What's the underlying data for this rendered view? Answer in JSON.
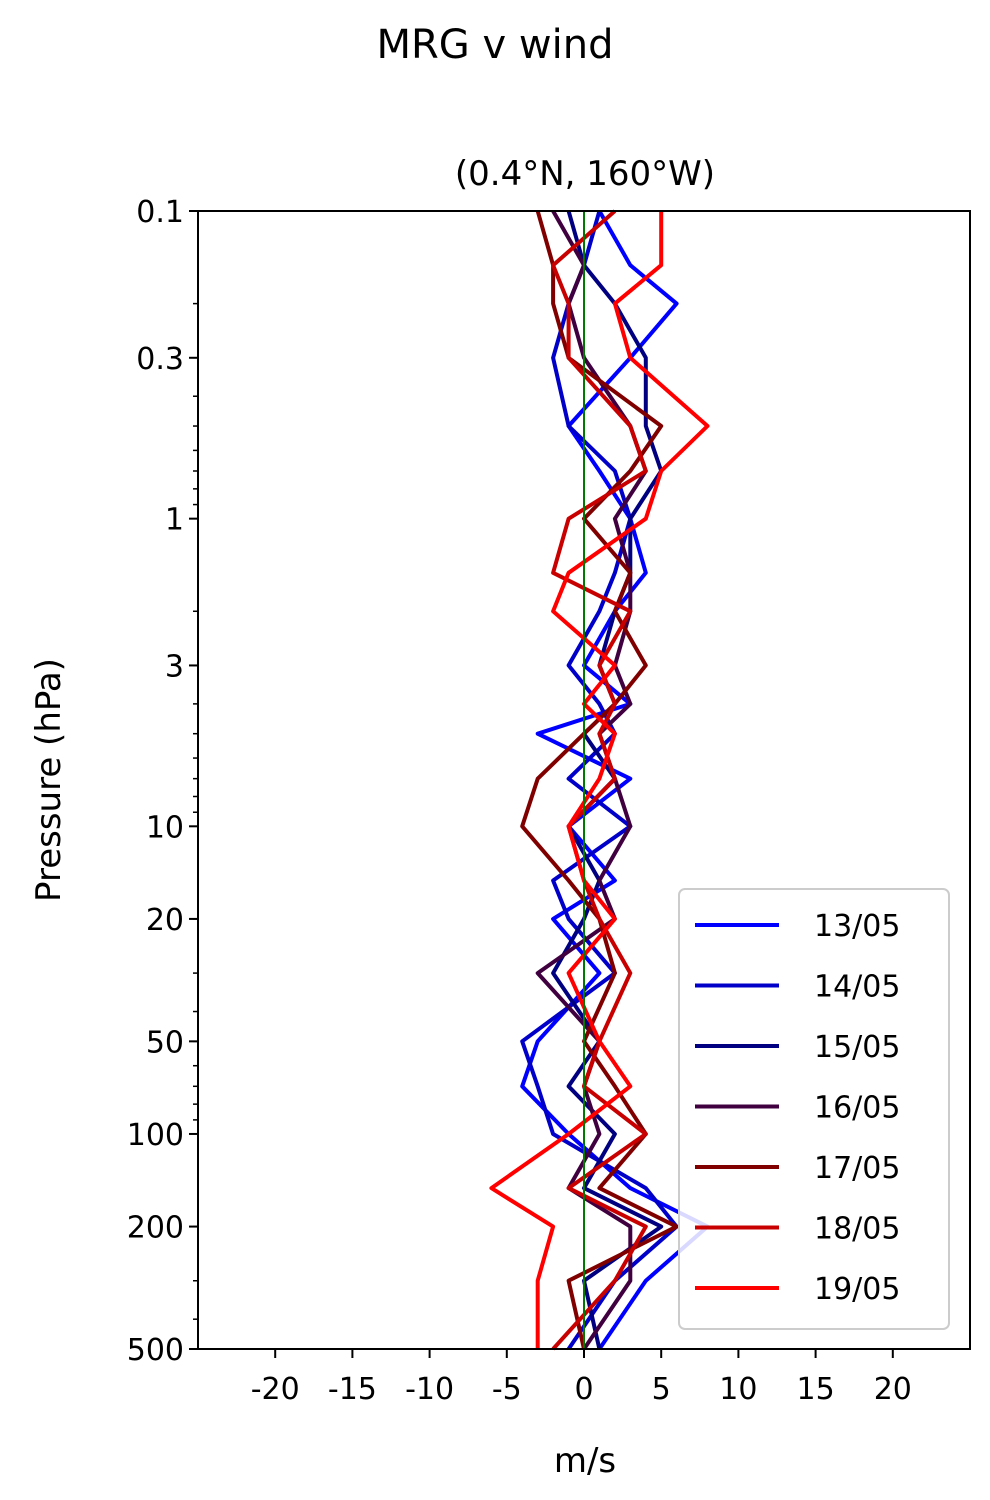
{
  "figure": {
    "title": "MRG v wind"
  },
  "colors": {
    "zero_line": "#007a00",
    "axes": "#000000"
  },
  "chart_data": {
    "type": "line",
    "title": "(0.4°N, 160°W)",
    "xlabel": "m/s",
    "ylabel": "Pressure (hPa)",
    "xlim": [
      -25,
      25
    ],
    "ylim": [
      500,
      0.1
    ],
    "yscale": "log",
    "x_ticks": [
      -20,
      -15,
      -10,
      -5,
      0,
      5,
      10,
      15,
      20
    ],
    "x_tick_labels": [
      "-20",
      "-15",
      "-10",
      "-5",
      "0",
      "5",
      "10",
      "15",
      "20"
    ],
    "y_ticks": [
      0.1,
      0.3,
      1,
      3,
      10,
      20,
      50,
      100,
      200,
      500
    ],
    "y_tick_labels": [
      "0.1",
      "0.3",
      "1",
      "3",
      "10",
      "20",
      "50",
      "100",
      "200",
      "500"
    ],
    "grid": false,
    "legend_position": "bottom-right",
    "zero_line": true,
    "series": [
      {
        "name": "13/05",
        "color": "#0000ff",
        "p": [
          0.1,
          0.15,
          0.2,
          0.3,
          0.5,
          0.7,
          1,
          1.5,
          2,
          3,
          4,
          5,
          7,
          10,
          15,
          20,
          30,
          50,
          70,
          100,
          150,
          200,
          300,
          500
        ],
        "v": [
          1,
          3,
          6,
          3,
          -1,
          1,
          3,
          4,
          2,
          0,
          3,
          -3,
          3,
          -1,
          2,
          -2,
          1,
          -3,
          -4,
          -1,
          3,
          8,
          4,
          1
        ]
      },
      {
        "name": "14/05",
        "color": "#0000c8",
        "p": [
          0.1,
          0.15,
          0.2,
          0.3,
          0.5,
          0.7,
          1,
          1.5,
          2,
          3,
          4,
          5,
          7,
          10,
          15,
          20,
          30,
          50,
          70,
          100,
          150,
          200,
          300,
          500
        ],
        "v": [
          1,
          0,
          -1,
          -2,
          -1,
          2,
          3,
          2,
          1,
          -1,
          1,
          2,
          -1,
          3,
          -2,
          -1,
          2,
          -4,
          -3,
          -2,
          4,
          6,
          2,
          -1
        ]
      },
      {
        "name": "15/05",
        "color": "#000080",
        "p": [
          0.1,
          0.15,
          0.2,
          0.3,
          0.5,
          0.7,
          1,
          1.5,
          2,
          3,
          4,
          5,
          7,
          10,
          15,
          20,
          30,
          50,
          70,
          100,
          150,
          200,
          300,
          500
        ],
        "v": [
          -1,
          0,
          2,
          4,
          4,
          5,
          3,
          3,
          2,
          1,
          2,
          0,
          2,
          -1,
          1,
          0,
          -2,
          1,
          -1,
          2,
          0,
          5,
          0,
          1
        ]
      },
      {
        "name": "16/05",
        "color": "#400040",
        "p": [
          0.1,
          0.15,
          0.2,
          0.3,
          0.5,
          0.7,
          1,
          1.5,
          2,
          3,
          4,
          5,
          7,
          10,
          15,
          20,
          30,
          50,
          70,
          100,
          150,
          200,
          300,
          500
        ],
        "v": [
          -2,
          0,
          -1,
          0,
          3,
          4,
          2,
          3,
          3,
          2,
          3,
          1,
          2,
          3,
          1,
          2,
          -3,
          1,
          0,
          1,
          -1,
          3,
          3,
          0
        ]
      },
      {
        "name": "17/05",
        "color": "#800000",
        "p": [
          0.1,
          0.15,
          0.2,
          0.3,
          0.5,
          0.7,
          1,
          1.5,
          2,
          3,
          4,
          5,
          7,
          10,
          15,
          20,
          30,
          50,
          70,
          100,
          150,
          200,
          300,
          500
        ],
        "v": [
          -3,
          -2,
          -2,
          -1,
          5,
          3,
          0,
          3,
          2,
          4,
          2,
          0,
          -3,
          -4,
          -1,
          1,
          2,
          0,
          2,
          4,
          1,
          6,
          -1,
          0
        ]
      },
      {
        "name": "18/05",
        "color": "#c80000",
        "p": [
          0.1,
          0.15,
          0.2,
          0.3,
          0.5,
          0.7,
          1,
          1.5,
          2,
          3,
          4,
          5,
          7,
          10,
          15,
          20,
          30,
          50,
          70,
          100,
          150,
          200,
          300,
          500
        ],
        "v": [
          2,
          -2,
          -1,
          -1,
          3,
          4,
          -1,
          -2,
          3,
          1,
          2,
          1,
          2,
          -1,
          0,
          1,
          3,
          1,
          0,
          4,
          -1,
          4,
          2,
          -2
        ]
      },
      {
        "name": "19/05",
        "color": "#ff0000",
        "p": [
          0.1,
          0.15,
          0.2,
          0.3,
          0.5,
          0.7,
          1,
          1.5,
          2,
          3,
          4,
          5,
          7,
          10,
          15,
          20,
          30,
          50,
          70,
          100,
          150,
          200,
          300,
          500
        ],
        "v": [
          5,
          5,
          2,
          3,
          8,
          5,
          4,
          -1,
          -2,
          2,
          0,
          2,
          1,
          -1,
          0,
          2,
          -1,
          1,
          3,
          -1,
          -6,
          -2,
          -3,
          -3
        ]
      }
    ]
  }
}
